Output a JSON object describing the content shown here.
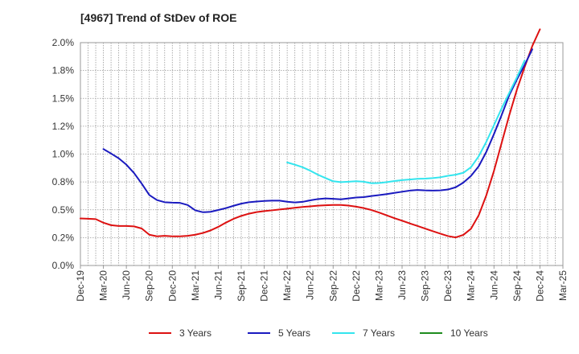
{
  "chart_data": {
    "type": "line",
    "title": "[4967]  Trend of StDev of ROE",
    "xlabel": "",
    "ylabel": "",
    "ylim": [
      0,
      0.02
    ],
    "grid": true,
    "legend_position": "bottom",
    "y_ticks": [
      "0.0%",
      "0.2%",
      "0.5%",
      "0.8%",
      "1.0%",
      "1.2%",
      "1.5%",
      "1.8%",
      "2.0%"
    ],
    "x_ticks": [
      "Dec-19",
      "Mar-20",
      "Jun-20",
      "Sep-20",
      "Dec-20",
      "Mar-21",
      "Jun-21",
      "Sep-21",
      "Dec-21",
      "Mar-22",
      "Jun-22",
      "Sep-22",
      "Dec-22",
      "Mar-23",
      "Jun-23",
      "Sep-23",
      "Dec-23",
      "Mar-24",
      "Jun-24",
      "Sep-24",
      "Dec-24",
      "Mar-25"
    ],
    "x_months": [
      "Dec-19",
      "Jan-20",
      "Feb-20",
      "Mar-20",
      "Apr-20",
      "May-20",
      "Jun-20",
      "Jul-20",
      "Aug-20",
      "Sep-20",
      "Oct-20",
      "Nov-20",
      "Dec-20",
      "Jan-21",
      "Feb-21",
      "Mar-21",
      "Apr-21",
      "May-21",
      "Jun-21",
      "Jul-21",
      "Aug-21",
      "Sep-21",
      "Oct-21",
      "Nov-21",
      "Dec-21",
      "Jan-22",
      "Feb-22",
      "Mar-22",
      "Apr-22",
      "May-22",
      "Jun-22",
      "Jul-22",
      "Aug-22",
      "Sep-22",
      "Oct-22",
      "Nov-22",
      "Dec-22",
      "Jan-23",
      "Feb-23",
      "Mar-23",
      "Apr-23",
      "May-23",
      "Jun-23",
      "Jul-23",
      "Aug-23",
      "Sep-23",
      "Oct-23",
      "Nov-23",
      "Dec-23",
      "Jan-24",
      "Feb-24",
      "Mar-24",
      "Apr-24",
      "May-24",
      "Jun-24",
      "Jul-24",
      "Aug-24",
      "Sep-24",
      "Oct-24",
      "Nov-24",
      "Dec-24",
      "Jan-25",
      "Feb-25",
      "Mar-25"
    ],
    "series": [
      {
        "name": "3 Years",
        "color": "#dd1111",
        "start": "Dec-19",
        "values": [
          0.00422,
          0.0042,
          0.00416,
          0.00384,
          0.00362,
          0.00355,
          0.00355,
          0.00351,
          0.00332,
          0.00276,
          0.00262,
          0.00266,
          0.00262,
          0.00262,
          0.00266,
          0.00276,
          0.00292,
          0.00315,
          0.00347,
          0.00385,
          0.00419,
          0.00445,
          0.00465,
          0.00479,
          0.00488,
          0.00495,
          0.00503,
          0.0051,
          0.00518,
          0.00525,
          0.00531,
          0.00537,
          0.00541,
          0.00543,
          0.00543,
          0.00538,
          0.00528,
          0.00515,
          0.00498,
          0.00475,
          0.0045,
          0.00425,
          0.00402,
          0.00378,
          0.00355,
          0.00332,
          0.00308,
          0.00286,
          0.00264,
          0.00252,
          0.00275,
          0.0033,
          0.0045,
          0.0063,
          0.0085,
          0.011,
          0.0135,
          0.0158,
          0.0178,
          0.0197,
          0.0212
        ]
      },
      {
        "name": "5 Years",
        "color": "#1a1abf",
        "start": "Mar-20",
        "values": [
          0.01045,
          0.01005,
          0.00962,
          0.00905,
          0.0083,
          0.00735,
          0.00632,
          0.00587,
          0.00568,
          0.00564,
          0.00562,
          0.00543,
          0.00495,
          0.00478,
          0.00482,
          0.00498,
          0.00515,
          0.00536,
          0.00555,
          0.00568,
          0.00574,
          0.00579,
          0.00582,
          0.00582,
          0.00572,
          0.00566,
          0.00571,
          0.00585,
          0.00596,
          0.00602,
          0.00598,
          0.00594,
          0.00602,
          0.0061,
          0.00614,
          0.00624,
          0.00632,
          0.00641,
          0.00652,
          0.00662,
          0.00672,
          0.00678,
          0.00674,
          0.00672,
          0.00674,
          0.00682,
          0.00702,
          0.00744,
          0.00804,
          0.0089,
          0.0102,
          0.0118,
          0.0135,
          0.0153,
          0.0167,
          0.018,
          0.0194
        ]
      },
      {
        "name": "7 Years",
        "color": "#33e5ee",
        "start": "Mar-22",
        "values": [
          0.00925,
          0.00905,
          0.00882,
          0.00851,
          0.00815,
          0.00785,
          0.00756,
          0.00748,
          0.00752,
          0.00756,
          0.00752,
          0.00738,
          0.0074,
          0.00748,
          0.00758,
          0.00766,
          0.00772,
          0.00778,
          0.0078,
          0.00784,
          0.00792,
          0.00805,
          0.00815,
          0.00832,
          0.00882,
          0.0098,
          0.0111,
          0.0126,
          0.0141,
          0.0155,
          0.0169,
          0.0184
        ]
      },
      {
        "name": "10 Years",
        "color": "#1e8c1e",
        "start": "Dec-24",
        "values": []
      }
    ]
  }
}
